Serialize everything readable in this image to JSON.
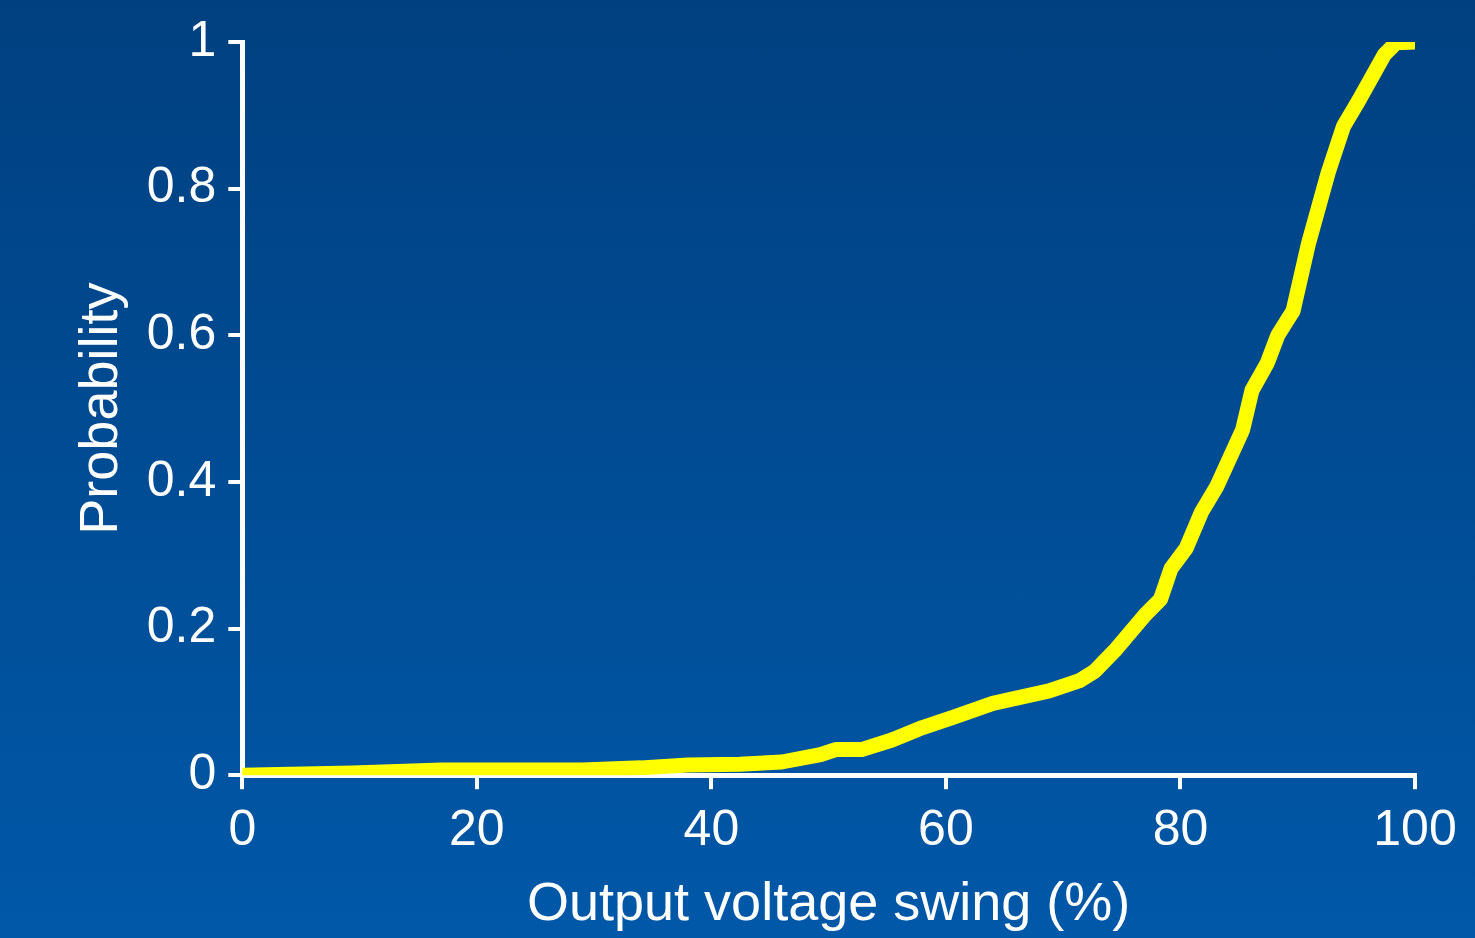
{
  "chart_data": {
    "type": "line",
    "xlabel": "Output voltage swing (%)",
    "ylabel": "Probability",
    "xlim": [
      0,
      100
    ],
    "xticks": [
      0,
      20,
      40,
      60,
      80,
      100
    ],
    "ylim": [
      0,
      1
    ],
    "yticks": [
      0,
      0.2,
      0.4,
      0.6,
      0.8,
      1
    ],
    "grid": false,
    "legend": false,
    "marker": "none",
    "line_style": "solid",
    "series": [
      {
        "color": "#ffff00",
        "x": [
          0,
          9.4,
          17,
          29,
          34,
          38,
          42.4,
          46,
          49.3,
          50.6,
          52.8,
          55.4,
          58,
          60.6,
          64,
          68.8,
          71.4,
          72.7,
          74.4,
          77,
          78.3,
          79.2,
          80.5,
          81.8,
          83.1,
          85.3,
          86.1,
          87.4,
          88.3,
          89.6,
          90.9,
          92.6,
          93.9,
          95.2,
          97.4,
          98.4,
          100
        ],
        "values": [
          0,
          0.003,
          0.007,
          0.007,
          0.01,
          0.014,
          0.015,
          0.018,
          0.028,
          0.035,
          0.035,
          0.048,
          0.065,
          0.079,
          0.098,
          0.115,
          0.129,
          0.142,
          0.17,
          0.219,
          0.24,
          0.282,
          0.31,
          0.359,
          0.394,
          0.471,
          0.525,
          0.562,
          0.6,
          0.633,
          0.724,
          0.822,
          0.885,
          0.92,
          0.983,
          0.999,
          1
        ]
      }
    ]
  }
}
